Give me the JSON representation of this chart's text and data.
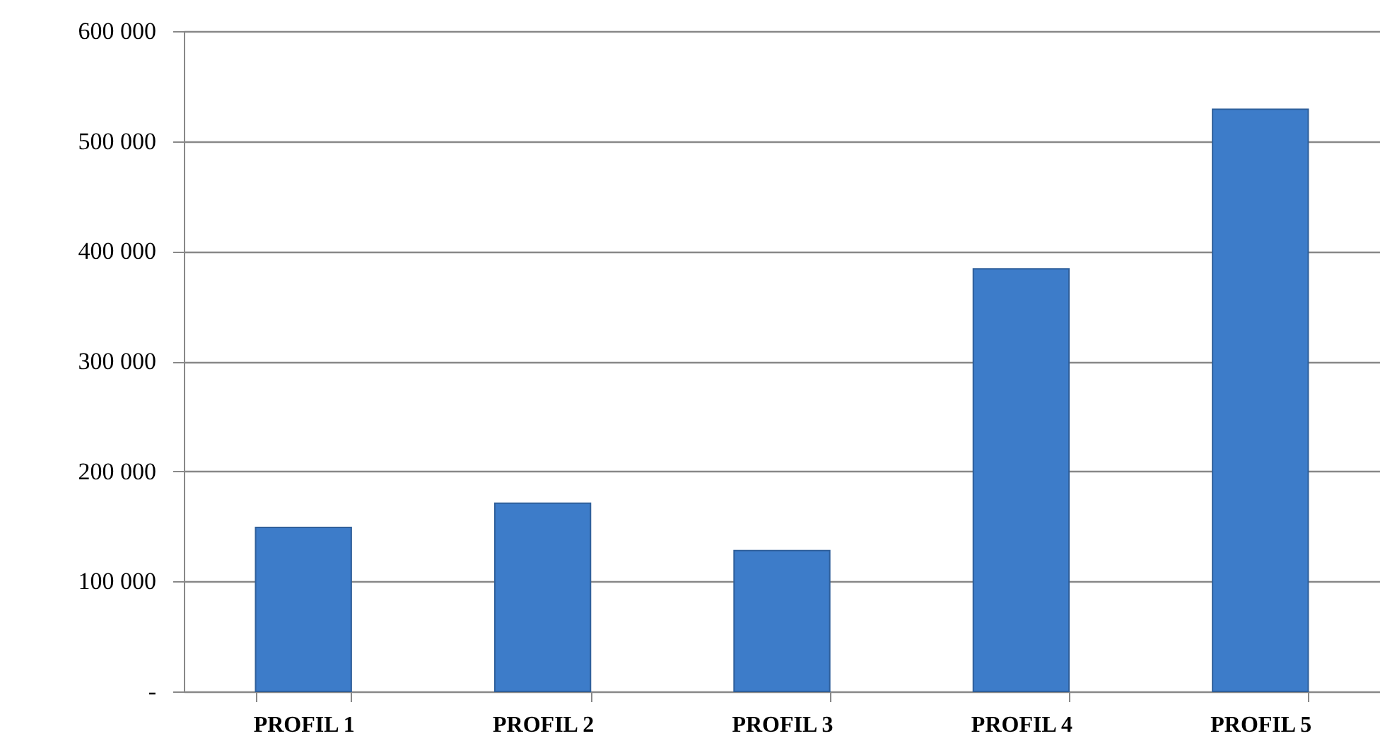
{
  "chart_data": {
    "type": "bar",
    "categories": [
      "PROFIL 1",
      "PROFIL 2",
      "PROFIL 3",
      "PROFIL 4",
      "PROFIL 5"
    ],
    "values": [
      149000,
      171000,
      128000,
      384000,
      529000
    ],
    "color": "#3d7cc9",
    "ylim": [
      0,
      600000
    ],
    "yticks": [
      {
        "value": 0,
        "label": "-"
      },
      {
        "value": 100000,
        "label": "100 000"
      },
      {
        "value": 200000,
        "label": "200 000"
      },
      {
        "value": 300000,
        "label": "300 000"
      },
      {
        "value": 400000,
        "label": "400 000"
      },
      {
        "value": 500000,
        "label": "500 000"
      },
      {
        "value": 600000,
        "label": "600 000"
      }
    ],
    "grid": "y"
  }
}
